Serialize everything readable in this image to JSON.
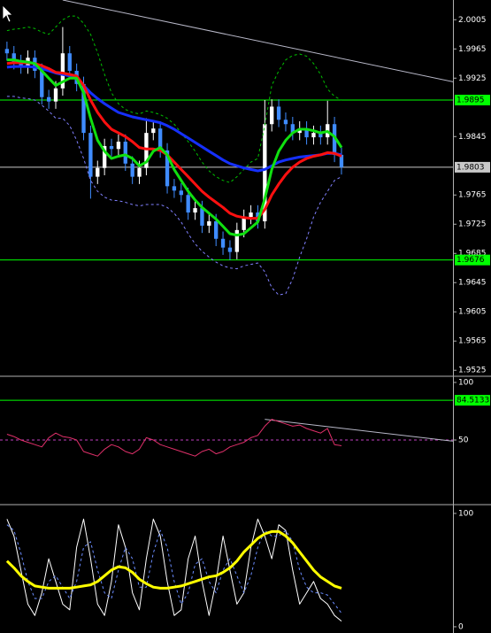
{
  "chart_data": [
    {
      "type": "candlestick",
      "x": [
        1,
        2,
        3,
        4,
        5,
        6,
        7,
        8,
        9,
        10,
        11,
        12,
        13,
        14,
        15,
        16,
        17,
        18,
        19,
        20,
        21,
        22,
        23,
        24,
        25,
        26,
        27,
        28,
        29,
        30,
        31,
        32,
        33,
        34,
        35,
        36,
        37,
        38,
        39,
        40,
        41,
        42,
        43,
        44,
        45,
        46,
        47,
        48,
        49
      ],
      "open": [
        1.9965,
        1.9959,
        1.9947,
        1.9941,
        1.9953,
        1.9935,
        1.9899,
        1.9893,
        1.9911,
        1.9959,
        1.9935,
        1.9917,
        1.985,
        1.979,
        1.9802,
        1.9832,
        1.9828,
        1.9838,
        1.9808,
        1.979,
        1.9802,
        1.985,
        1.9856,
        1.9826,
        1.9777,
        1.9771,
        1.9765,
        1.9741,
        1.9747,
        1.9723,
        1.9729,
        1.9705,
        1.9693,
        1.9687,
        1.9717,
        1.9735,
        1.9741,
        1.9729,
        1.9862,
        1.9886,
        1.9868,
        1.9862,
        1.985,
        1.9856,
        1.9844,
        1.985,
        1.9844,
        1.9862,
        1.982
      ],
      "high": [
        1.9975,
        1.9969,
        1.9957,
        1.9963,
        1.9963,
        1.9945,
        1.9909,
        1.9921,
        1.9995,
        1.9969,
        1.9945,
        1.9927,
        1.986,
        1.9812,
        1.9842,
        1.9842,
        1.9848,
        1.9848,
        1.9818,
        1.9812,
        1.987,
        1.9866,
        1.9866,
        1.9836,
        1.9787,
        1.9781,
        1.9775,
        1.9757,
        1.9757,
        1.9739,
        1.9739,
        1.9715,
        1.9703,
        1.9727,
        1.9745,
        1.9751,
        1.9751,
        1.9895,
        1.9896,
        1.9896,
        1.9878,
        1.9872,
        1.9866,
        1.9866,
        1.986,
        1.986,
        1.9894,
        1.9872,
        1.983
      ],
      "low": [
        1.9949,
        1.9937,
        1.9931,
        1.9931,
        1.9925,
        1.9889,
        1.9883,
        1.9883,
        1.9901,
        1.9925,
        1.9907,
        1.984,
        1.976,
        1.978,
        1.9792,
        1.9818,
        1.9818,
        1.9798,
        1.978,
        1.978,
        1.9792,
        1.984,
        1.9816,
        1.9767,
        1.9761,
        1.9755,
        1.9731,
        1.9731,
        1.9713,
        1.9713,
        1.9695,
        1.9683,
        1.9676,
        1.9677,
        1.9707,
        1.9725,
        1.9719,
        1.9719,
        1.9852,
        1.9858,
        1.9852,
        1.984,
        1.984,
        1.9834,
        1.9834,
        1.9834,
        1.9834,
        1.981,
        1.9793
      ],
      "close": [
        1.9959,
        1.9947,
        1.9941,
        1.9953,
        1.9935,
        1.9899,
        1.9893,
        1.9911,
        1.9959,
        1.9935,
        1.9917,
        1.985,
        1.979,
        1.9802,
        1.9832,
        1.9828,
        1.9838,
        1.9808,
        1.979,
        1.9802,
        1.985,
        1.9856,
        1.9826,
        1.9777,
        1.9771,
        1.9765,
        1.9741,
        1.9747,
        1.9723,
        1.9729,
        1.9705,
        1.9693,
        1.9687,
        1.9717,
        1.9735,
        1.9741,
        1.9729,
        1.9862,
        1.9886,
        1.9868,
        1.9862,
        1.985,
        1.9856,
        1.9844,
        1.985,
        1.9844,
        1.9862,
        1.982,
        1.9803
      ],
      "up_color": "#ffffff",
      "down_color": "#3f8cff",
      "series": [
        {
          "color": "#00c000",
          "dashed": true,
          "width": 1,
          "values": [
            1.999,
            1.9992,
            1.9993,
            1.9995,
            1.9993,
            1.9988,
            1.9985,
            1.9995,
            2.0005,
            2.001,
            2.001,
            2.0,
            1.9985,
            1.996,
            1.993,
            1.9905,
            1.989,
            1.9882,
            1.9878,
            1.9876,
            1.988,
            1.9878,
            1.9875,
            1.987,
            1.9862,
            1.985,
            1.9838,
            1.9825,
            1.981,
            1.9798,
            1.979,
            1.9785,
            1.9782,
            1.979,
            1.98,
            1.981,
            1.9815,
            1.986,
            1.9915,
            1.9935,
            1.995,
            1.9956,
            1.9958,
            1.9955,
            1.9945,
            1.993,
            1.991,
            1.99,
            1.9895
          ]
        },
        {
          "color": "#8080ff",
          "dashed": true,
          "width": 1,
          "values": [
            1.99,
            1.99,
            1.9898,
            1.9897,
            1.9895,
            1.9888,
            1.988,
            1.987,
            1.987,
            1.986,
            1.984,
            1.9815,
            1.9785,
            1.977,
            1.9762,
            1.9758,
            1.9757,
            1.9755,
            1.9752,
            1.975,
            1.9752,
            1.9752,
            1.9752,
            1.9748,
            1.974,
            1.9728,
            1.9712,
            1.9698,
            1.9688,
            1.968,
            1.9673,
            1.9668,
            1.9665,
            1.9664,
            1.9668,
            1.967,
            1.9672,
            1.966,
            1.9638,
            1.9628,
            1.963,
            1.965,
            1.968,
            1.9705,
            1.9735,
            1.9755,
            1.977,
            1.9785,
            1.979
          ]
        },
        {
          "color": "#1530ff",
          "dashed": false,
          "width": 3,
          "values": [
            1.994,
            1.9941,
            1.9941,
            1.9941,
            1.994,
            1.9938,
            1.9935,
            1.9932,
            1.993,
            1.9928,
            1.9924,
            1.9915,
            1.9905,
            1.9897,
            1.989,
            1.9884,
            1.9878,
            1.9875,
            1.9872,
            1.987,
            1.9868,
            1.9866,
            1.9864,
            1.986,
            1.9855,
            1.9849,
            1.9843,
            1.9837,
            1.9831,
            1.9825,
            1.9819,
            1.9813,
            1.9808,
            1.9805,
            1.9802,
            1.98,
            1.9798,
            1.98,
            1.9805,
            1.981,
            1.9813,
            1.9815,
            1.9817,
            1.9818,
            1.9819,
            1.982,
            1.9822,
            1.9822,
            1.982
          ]
        },
        {
          "color": "#ff1010",
          "dashed": false,
          "width": 3,
          "values": [
            1.9945,
            1.9946,
            1.9946,
            1.9946,
            1.9945,
            1.9942,
            1.9938,
            1.9933,
            1.9932,
            1.993,
            1.9928,
            1.9915,
            1.9895,
            1.9878,
            1.9865,
            1.9855,
            1.985,
            1.9845,
            1.9838,
            1.983,
            1.9828,
            1.9828,
            1.9826,
            1.982,
            1.981,
            1.98,
            1.979,
            1.978,
            1.977,
            1.9762,
            1.9755,
            1.9748,
            1.974,
            1.9736,
            1.9734,
            1.9733,
            1.9733,
            1.9745,
            1.9765,
            1.978,
            1.9793,
            1.9803,
            1.981,
            1.9815,
            1.9818,
            1.982,
            1.9823,
            1.9822,
            1.9818
          ]
        },
        {
          "color": "#10e010",
          "dashed": false,
          "width": 3,
          "values": [
            1.995,
            1.995,
            1.9948,
            1.9947,
            1.9945,
            1.9935,
            1.9925,
            1.9915,
            1.992,
            1.9925,
            1.9925,
            1.9905,
            1.987,
            1.984,
            1.9825,
            1.9815,
            1.9818,
            1.982,
            1.9815,
            1.9805,
            1.981,
            1.9825,
            1.983,
            1.982,
            1.98,
            1.9785,
            1.977,
            1.9758,
            1.9748,
            1.974,
            1.9732,
            1.9722,
            1.9712,
            1.971,
            1.9712,
            1.972,
            1.9728,
            1.976,
            1.98,
            1.9825,
            1.984,
            1.985,
            1.9855,
            1.9855,
            1.9853,
            1.985,
            1.9852,
            1.9845,
            1.983
          ]
        }
      ],
      "levels": [
        {
          "value": 1.9895,
          "color": "#00ff00",
          "text_color": "#000000"
        },
        {
          "value": 1.9803,
          "color": "#c8c8c8",
          "text_color": "#000000"
        },
        {
          "value": 1.9676,
          "color": "#00ff00",
          "text_color": "#000000"
        }
      ],
      "trendlines": [
        {
          "x": [
            9,
            65
          ],
          "y": [
            2.0032,
            1.992
          ],
          "color": "#b8b8c8"
        }
      ],
      "xlim": [
        0,
        65
      ],
      "ylim": [
        1.9518,
        2.0032
      ],
      "yticks": [
        2.0005,
        1.9965,
        1.9925,
        1.9845,
        1.9765,
        1.9725,
        1.9685,
        1.9645,
        1.9605,
        1.9565,
        1.9525
      ]
    },
    {
      "type": "line",
      "x": [
        1,
        2,
        3,
        4,
        5,
        6,
        7,
        8,
        9,
        10,
        11,
        12,
        13,
        14,
        15,
        16,
        17,
        18,
        19,
        20,
        21,
        22,
        23,
        24,
        25,
        26,
        27,
        28,
        29,
        30,
        31,
        32,
        33,
        34,
        35,
        36,
        37,
        38,
        39,
        40,
        41,
        42,
        43,
        44,
        45,
        46,
        47,
        48,
        49
      ],
      "series": [
        {
          "color": "#e0306a",
          "dashed": false,
          "width": 1,
          "values": [
            55,
            53,
            50,
            48,
            46,
            44,
            52,
            56,
            53,
            52,
            50,
            40,
            38,
            36,
            42,
            46,
            44,
            40,
            38,
            42,
            52,
            50,
            46,
            44,
            42,
            40,
            38,
            36,
            40,
            42,
            38,
            40,
            44,
            46,
            48,
            52,
            54,
            62,
            68,
            66,
            64,
            62,
            63,
            60,
            58,
            56,
            60,
            46,
            45
          ]
        }
      ],
      "levels": [
        {
          "value": 84.5133,
          "color": "#00ff00",
          "text_color": "#000000"
        }
      ],
      "hlines": [
        {
          "value": 50,
          "color": "#c040c0",
          "dashed": true
        }
      ],
      "trendlines": [
        {
          "x": [
            38,
            65
          ],
          "y": [
            68,
            49
          ],
          "color": "#b8b8c8"
        }
      ],
      "xlim": [
        0,
        65
      ],
      "ylim": [
        -4.6,
        104.6
      ],
      "yticks": [
        100,
        50
      ]
    },
    {
      "type": "line",
      "x": [
        1,
        2,
        3,
        4,
        5,
        6,
        7,
        8,
        9,
        10,
        11,
        12,
        13,
        14,
        15,
        16,
        17,
        18,
        19,
        20,
        21,
        22,
        23,
        24,
        25,
        26,
        27,
        28,
        29,
        30,
        31,
        32,
        33,
        34,
        35,
        36,
        37,
        38,
        39,
        40,
        41,
        42,
        43,
        44,
        45,
        46,
        47,
        48,
        49
      ],
      "series": [
        {
          "color": "#ffffff",
          "dashed": false,
          "width": 1,
          "values": [
            95,
            80,
            50,
            20,
            10,
            30,
            60,
            40,
            20,
            15,
            70,
            95,
            60,
            20,
            10,
            40,
            90,
            70,
            30,
            15,
            60,
            95,
            80,
            40,
            10,
            15,
            60,
            80,
            40,
            10,
            40,
            80,
            50,
            20,
            30,
            70,
            95,
            80,
            60,
            90,
            85,
            50,
            20,
            30,
            40,
            25,
            20,
            10,
            5
          ]
        },
        {
          "color": "#6a8cff",
          "dashed": true,
          "width": 1,
          "values": [
            90,
            85,
            65,
            40,
            25,
            25,
            40,
            45,
            35,
            25,
            40,
            70,
            75,
            50,
            30,
            25,
            50,
            70,
            60,
            35,
            35,
            65,
            85,
            70,
            40,
            20,
            30,
            55,
            60,
            40,
            30,
            50,
            60,
            45,
            30,
            45,
            70,
            85,
            80,
            80,
            85,
            75,
            50,
            35,
            30,
            30,
            28,
            20,
            12
          ]
        },
        {
          "color": "#ffff00",
          "dashed": false,
          "width": 3,
          "values": [
            58,
            52,
            45,
            40,
            36,
            35,
            34,
            34,
            34,
            34,
            35,
            36,
            37,
            40,
            45,
            50,
            53,
            52,
            48,
            42,
            38,
            35,
            34,
            34,
            35,
            36,
            38,
            40,
            42,
            44,
            45,
            48,
            52,
            58,
            66,
            72,
            78,
            82,
            84,
            84,
            80,
            74,
            66,
            58,
            50,
            44,
            40,
            36,
            34
          ]
        }
      ],
      "xlim": [
        0,
        65
      ],
      "ylim": [
        -5.5,
        106.2
      ],
      "yticks": [
        100,
        0
      ]
    }
  ]
}
